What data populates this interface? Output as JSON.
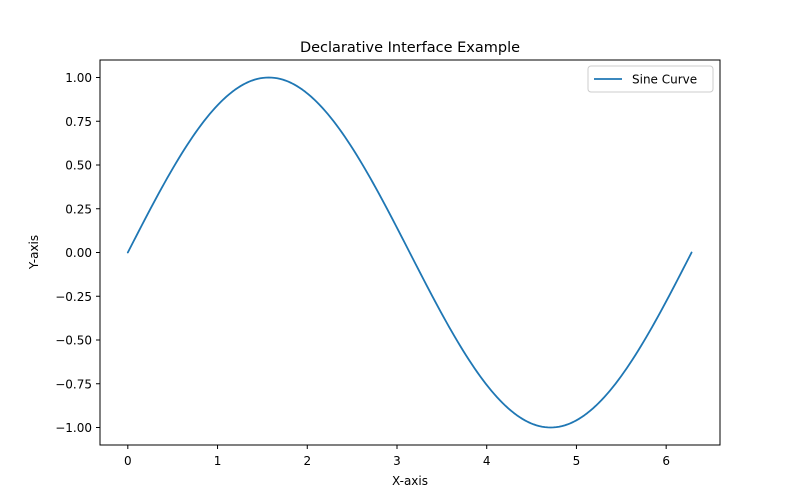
{
  "chart_data": {
    "type": "line",
    "title": "Declarative Interface Example",
    "xlabel": "X-axis",
    "ylabel": "Y-axis",
    "xlim": [
      -0.31,
      6.6
    ],
    "ylim": [
      -1.1,
      1.1
    ],
    "xticks": [
      0,
      1,
      2,
      3,
      4,
      5,
      6
    ],
    "xtick_labels": [
      "0",
      "1",
      "2",
      "3",
      "4",
      "5",
      "6"
    ],
    "yticks": [
      1.0,
      0.75,
      0.5,
      0.25,
      0.0,
      -0.25,
      -0.5,
      -0.75,
      -1.0
    ],
    "ytick_labels": [
      "1.00",
      "0.75",
      "0.50",
      "0.25",
      "0.00",
      "−0.25",
      "−0.50",
      "−0.75",
      "−1.00"
    ],
    "grid": false,
    "legend": {
      "placement": "top-right"
    },
    "series": [
      {
        "name": "Sine Curve",
        "color": "#1f77b4",
        "x": [
          0,
          0.2618,
          0.5236,
          0.7854,
          1.0472,
          1.309,
          1.5708,
          1.8326,
          2.0944,
          2.3562,
          2.618,
          2.8798,
          3.1416,
          3.4034,
          3.6652,
          3.927,
          4.1888,
          4.4506,
          4.7124,
          4.9742,
          5.236,
          5.4978,
          5.7596,
          6.0214,
          6.2832
        ],
        "y": [
          0,
          0.2588,
          0.5,
          0.7071,
          0.866,
          0.9659,
          1,
          0.9659,
          0.866,
          0.7071,
          0.5,
          0.2588,
          0,
          -0.2588,
          -0.5,
          -0.7071,
          -0.866,
          -0.9659,
          -1,
          -0.9659,
          -0.866,
          -0.7071,
          -0.5,
          -0.2588,
          0
        ]
      }
    ]
  }
}
